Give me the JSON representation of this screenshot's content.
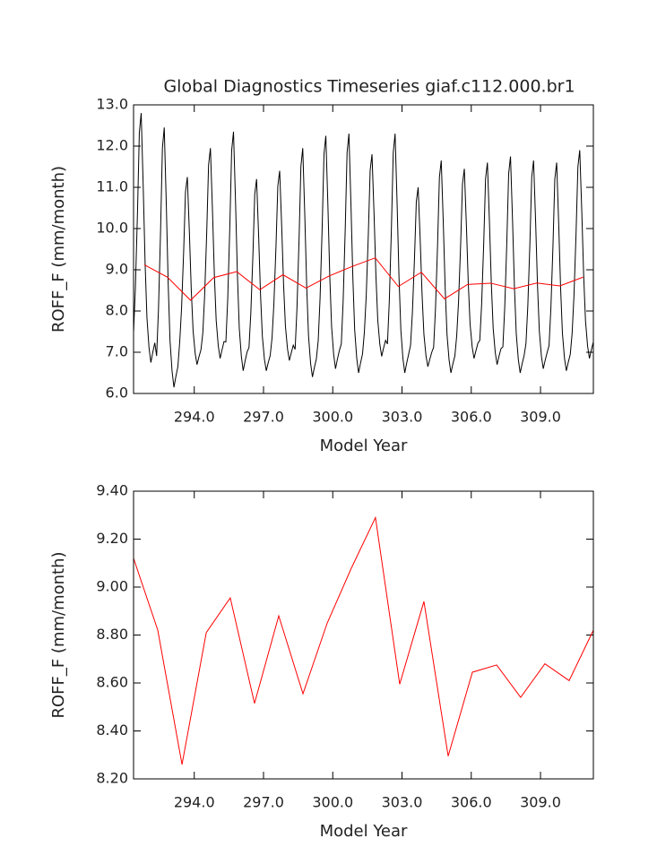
{
  "chart_data": [
    {
      "type": "line",
      "title": "Global Diagnostics Timeseries giaf.c112.000.br1",
      "xlabel": "Model Year",
      "ylabel": "ROFF_F (mm/month)",
      "xlim": [
        291.37,
        311.29
      ],
      "ylim": [
        6.0,
        13.0
      ],
      "xticks": [
        {
          "value": 294,
          "label": "294.0"
        },
        {
          "value": 297,
          "label": "297.0"
        },
        {
          "value": 300,
          "label": "300.0"
        },
        {
          "value": 303,
          "label": "303.0"
        },
        {
          "value": 306,
          "label": "306.0"
        },
        {
          "value": 309,
          "label": "309.0"
        }
      ],
      "yticks": [
        {
          "value": 6,
          "label": "6.0"
        },
        {
          "value": 7,
          "label": "7.0"
        },
        {
          "value": 8,
          "label": "8.0"
        },
        {
          "value": 9,
          "label": "9.0"
        },
        {
          "value": 10,
          "label": "10.0"
        },
        {
          "value": 11,
          "label": "11.0"
        },
        {
          "value": 12,
          "label": "12.0"
        },
        {
          "value": 13,
          "label": "13.0"
        }
      ],
      "series": [
        {
          "color": "#000000",
          "x": [
            291.37,
            291.45,
            291.54,
            291.62,
            291.7,
            291.79,
            291.87,
            291.95,
            292.04,
            292.12,
            292.2,
            292.29,
            292.37,
            292.45,
            292.54,
            292.62,
            292.7,
            292.79,
            292.87,
            292.95,
            293.04,
            293.12,
            293.2,
            293.29,
            293.37,
            293.45,
            293.54,
            293.62,
            293.7,
            293.79,
            293.87,
            293.95,
            294.04,
            294.12,
            294.2,
            294.29,
            294.37,
            294.45,
            294.54,
            294.62,
            294.7,
            294.79,
            294.87,
            294.95,
            295.04,
            295.12,
            295.2,
            295.29,
            295.37,
            295.45,
            295.54,
            295.62,
            295.7,
            295.79,
            295.87,
            295.95,
            296.04,
            296.12,
            296.2,
            296.29,
            296.37,
            296.45,
            296.54,
            296.62,
            296.7,
            296.79,
            296.87,
            296.95,
            297.04,
            297.12,
            297.2,
            297.29,
            297.37,
            297.45,
            297.54,
            297.62,
            297.7,
            297.79,
            297.87,
            297.95,
            298.04,
            298.12,
            298.2,
            298.29,
            298.37,
            298.45,
            298.54,
            298.62,
            298.7,
            298.79,
            298.87,
            298.95,
            299.04,
            299.12,
            299.2,
            299.29,
            299.37,
            299.45,
            299.54,
            299.62,
            299.7,
            299.79,
            299.87,
            299.95,
            300.04,
            300.12,
            300.2,
            300.29,
            300.37,
            300.45,
            300.54,
            300.62,
            300.7,
            300.79,
            300.87,
            300.95,
            301.04,
            301.12,
            301.2,
            301.29,
            301.37,
            301.45,
            301.54,
            301.62,
            301.7,
            301.79,
            301.87,
            301.95,
            302.04,
            302.12,
            302.2,
            302.29,
            302.37,
            302.45,
            302.54,
            302.62,
            302.7,
            302.79,
            302.87,
            302.95,
            303.04,
            303.12,
            303.2,
            303.29,
            303.37,
            303.45,
            303.54,
            303.62,
            303.7,
            303.79,
            303.87,
            303.95,
            304.04,
            304.12,
            304.2,
            304.29,
            304.37,
            304.45,
            304.54,
            304.62,
            304.7,
            304.79,
            304.87,
            304.95,
            305.04,
            305.12,
            305.2,
            305.29,
            305.37,
            305.45,
            305.54,
            305.62,
            305.7,
            305.79,
            305.87,
            305.95,
            306.04,
            306.12,
            306.2,
            306.29,
            306.37,
            306.45,
            306.54,
            306.62,
            306.7,
            306.79,
            306.87,
            306.95,
            307.04,
            307.12,
            307.2,
            307.29,
            307.37,
            307.45,
            307.54,
            307.62,
            307.7,
            307.79,
            307.87,
            307.95,
            308.04,
            308.12,
            308.2,
            308.29,
            308.37,
            308.45,
            308.54,
            308.62,
            308.7,
            308.79,
            308.87,
            308.95,
            309.04,
            309.12,
            309.2,
            309.29,
            309.37,
            309.45,
            309.54,
            309.62,
            309.7,
            309.79,
            309.87,
            309.95,
            310.04,
            310.12,
            310.2,
            310.29,
            310.37,
            310.45,
            310.54,
            310.62,
            310.7,
            310.79,
            310.87,
            310.95,
            311.04,
            311.12,
            311.2,
            311.29
          ],
          "values": [
            7.48,
            8.57,
            10.38,
            12.32,
            12.8,
            10.99,
            9.17,
            7.84,
            7.11,
            6.75,
            6.99,
            7.23,
            6.91,
            8.04,
            9.93,
            11.95,
            12.45,
            10.56,
            8.67,
            7.28,
            6.53,
            6.15,
            6.4,
            6.65,
            7.25,
            8.07,
            9.43,
            10.89,
            11.25,
            9.89,
            8.52,
            7.52,
            6.97,
            6.7,
            6.88,
            7.06,
            7.46,
            8.38,
            9.91,
            11.54,
            11.95,
            10.42,
            8.89,
            7.77,
            7.16,
            6.85,
            7.05,
            7.26,
            7.25,
            8.29,
            10.03,
            11.89,
            12.35,
            10.61,
            8.87,
            7.59,
            6.9,
            6.55,
            6.78,
            7.01,
            7.11,
            7.95,
            9.34,
            10.83,
            11.2,
            9.81,
            8.41,
            7.39,
            6.83,
            6.55,
            6.74,
            6.92,
            7.35,
            8.18,
            9.56,
            11.03,
            11.4,
            10.02,
            8.64,
            7.63,
            7.08,
            6.8,
            6.98,
            7.17,
            7.07,
            8.07,
            9.73,
            11.51,
            11.95,
            10.29,
            8.62,
            7.4,
            6.73,
            6.4,
            6.62,
            6.84,
            7.28,
            8.3,
            9.99,
            11.8,
            12.25,
            10.56,
            8.86,
            7.62,
            6.94,
            6.6,
            6.83,
            7.05,
            7.2,
            8.24,
            9.98,
            11.84,
            12.3,
            10.56,
            8.82,
            7.54,
            6.85,
            6.5,
            6.73,
            6.96,
            7.49,
            8.37,
            9.84,
            11.41,
            11.8,
            10.33,
            8.86,
            7.78,
            7.19,
            6.9,
            7.1,
            7.29,
            7.2,
            8.24,
            9.98,
            11.84,
            12.3,
            10.56,
            8.82,
            7.54,
            6.85,
            6.5,
            6.73,
            6.96,
            7.17,
            7.96,
            9.26,
            10.65,
            11.0,
            9.7,
            8.39,
            7.43,
            6.91,
            6.65,
            6.82,
            7.0,
            7.12,
            8.05,
            9.59,
            11.24,
            11.65,
            10.11,
            8.56,
            7.43,
            6.81,
            6.5,
            6.71,
            6.91,
            7.4,
            8.23,
            9.61,
            11.08,
            11.45,
            10.07,
            8.69,
            7.68,
            7.13,
            6.85,
            7.03,
            7.22,
            7.29,
            8.17,
            9.64,
            11.21,
            11.6,
            10.13,
            8.66,
            7.58,
            6.99,
            6.7,
            6.9,
            7.09,
            7.13,
            8.08,
            9.65,
            11.33,
            11.75,
            10.18,
            8.6,
            7.45,
            6.82,
            6.5,
            6.71,
            6.92,
            7.21,
            8.12,
            9.63,
            11.25,
            11.65,
            10.14,
            8.62,
            7.51,
            6.9,
            6.6,
            6.8,
            7.0,
            7.16,
            8.07,
            9.58,
            11.2,
            11.6,
            10.09,
            8.57,
            7.46,
            6.85,
            6.55,
            6.75,
            6.95,
            7.46,
            8.37,
            9.88,
            11.5,
            11.9,
            10.39,
            8.87,
            7.76,
            7.15,
            6.85,
            7.05,
            7.25
          ]
        },
        {
          "color": "#ff0000",
          "x": [
            291.84,
            292.84,
            293.84,
            294.84,
            295.84,
            296.84,
            297.84,
            298.84,
            299.84,
            300.84,
            301.84,
            302.84,
            303.84,
            304.84,
            305.84,
            306.84,
            307.84,
            308.84,
            309.84,
            310.84
          ],
          "values": [
            9.12,
            8.82,
            8.26,
            8.81,
            8.955,
            8.515,
            8.88,
            8.555,
            8.85,
            9.08,
            9.29,
            8.595,
            8.94,
            8.295,
            8.645,
            8.675,
            8.54,
            8.68,
            8.61,
            8.82
          ]
        }
      ]
    },
    {
      "type": "line",
      "xlabel": "Model Year",
      "ylabel": "ROFF_F (mm/month)",
      "xlim": [
        291.37,
        311.29
      ],
      "ylim": [
        8.2,
        9.4
      ],
      "xticks": [
        {
          "value": 294,
          "label": "294.0"
        },
        {
          "value": 297,
          "label": "297.0"
        },
        {
          "value": 300,
          "label": "300.0"
        },
        {
          "value": 303,
          "label": "303.0"
        },
        {
          "value": 306,
          "label": "306.0"
        },
        {
          "value": 309,
          "label": "309.0"
        }
      ],
      "yticks": [
        {
          "value": 8.2,
          "label": "8.20"
        },
        {
          "value": 8.4,
          "label": "8.40"
        },
        {
          "value": 8.6,
          "label": "8.60"
        },
        {
          "value": 8.8,
          "label": "8.80"
        },
        {
          "value": 9.0,
          "label": "9.00"
        },
        {
          "value": 9.2,
          "label": "9.20"
        },
        {
          "value": 9.4,
          "label": "9.40"
        }
      ],
      "series": [
        {
          "color": "#ff0000",
          "x": [
            291.37,
            292.42,
            293.47,
            294.52,
            295.56,
            296.61,
            297.66,
            298.71,
            299.76,
            300.81,
            301.85,
            302.9,
            303.95,
            305.0,
            306.05,
            307.1,
            308.14,
            309.19,
            310.24,
            311.29
          ],
          "values": [
            9.12,
            8.82,
            8.26,
            8.81,
            8.955,
            8.515,
            8.88,
            8.555,
            8.85,
            9.08,
            9.29,
            8.595,
            8.94,
            8.295,
            8.645,
            8.675,
            8.54,
            8.68,
            8.61,
            8.82
          ]
        }
      ]
    }
  ]
}
